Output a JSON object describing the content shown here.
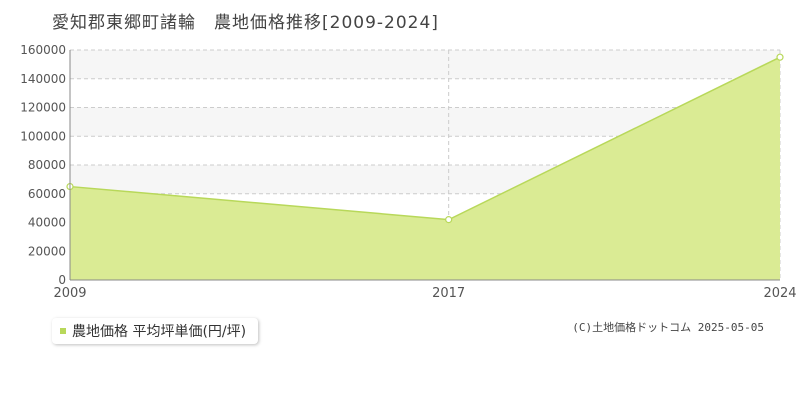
{
  "title": "愛知郡東郷町諸輪　農地価格推移[2009-2024]",
  "colors": {
    "area_fill": "#daeb94",
    "line": "#b8d85a",
    "grid": "#cccccc",
    "band": "#f6f6f6"
  },
  "chart_data": {
    "type": "area",
    "title": "愛知郡東郷町諸輪　農地価格推移[2009-2024]",
    "x": [
      2009,
      2017,
      2024
    ],
    "x_tick_labels": [
      "2009",
      "2017",
      "2024"
    ],
    "series": [
      {
        "name": "農地価格 平均坪単価(円/坪)",
        "values": [
          65000,
          42000,
          155000
        ]
      }
    ],
    "ylim": [
      0,
      160000
    ],
    "y_ticks": [
      0,
      20000,
      40000,
      60000,
      80000,
      100000,
      120000,
      140000,
      160000
    ],
    "y_tick_labels": [
      "0",
      "20000",
      "40000",
      "60000",
      "80000",
      "100000",
      "120000",
      "140000",
      "160000"
    ],
    "grid": true,
    "legend": "bottom-left"
  },
  "legend": {
    "label": "農地価格 平均坪単価(円/坪)"
  },
  "credit": "(C)土地価格ドットコム 2025-05-05"
}
